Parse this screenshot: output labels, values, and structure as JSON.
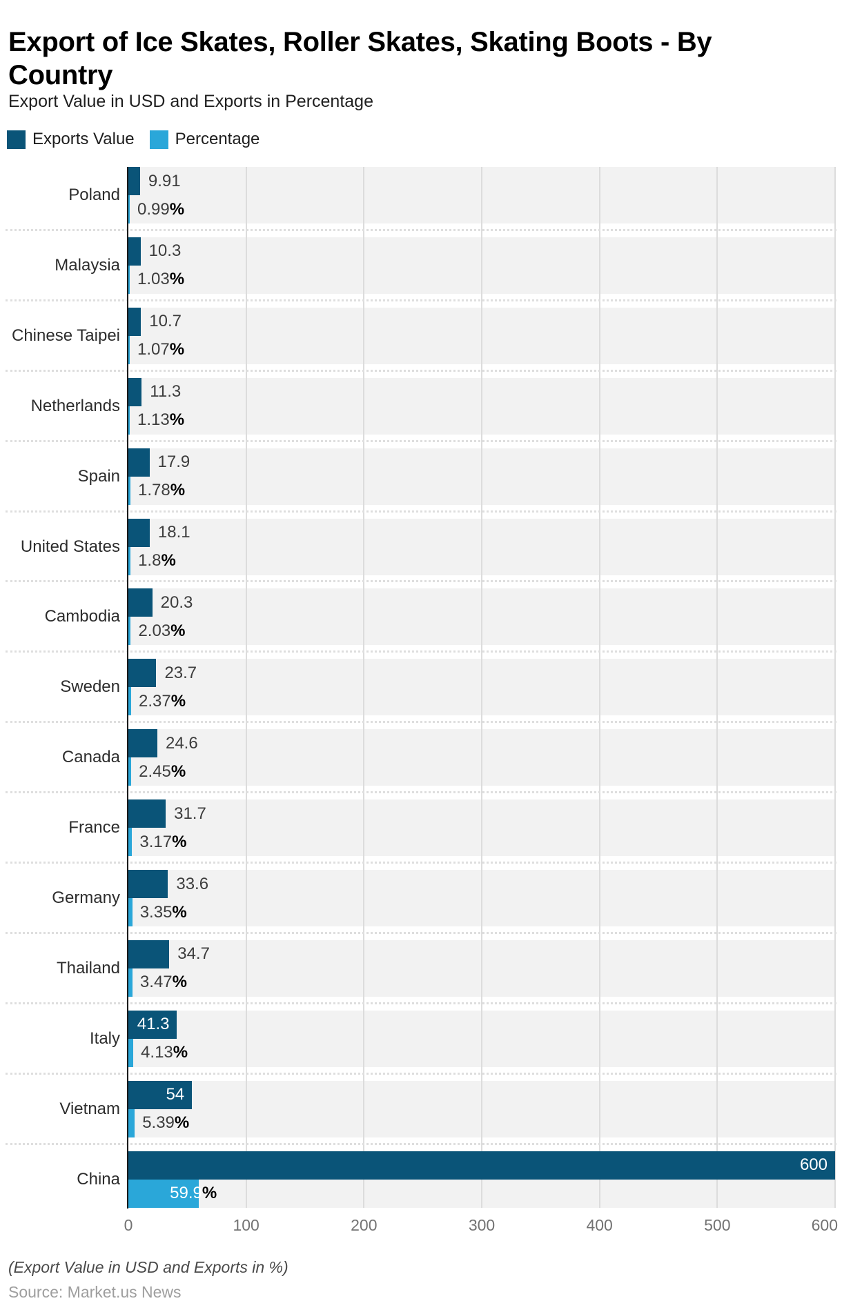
{
  "page": {
    "title": "Export of Ice Skates, Roller Skates, Skating Boots - By Country",
    "subtitle": "Export Value in USD and Exports in Percentage",
    "footnote": "(Export Value in USD and Exports in %)",
    "source": "Source: Market.us News"
  },
  "legend": {
    "items": [
      {
        "label": "Exports Value",
        "color": "#0a5478"
      },
      {
        "label": "Percentage",
        "color": "#2aa7d9"
      }
    ]
  },
  "colors": {
    "exports_value_bar": "#0a5478",
    "percentage_bar": "#2aa7d9",
    "row_band": "#f2f2f2",
    "grid_line": "#dcdcdc",
    "axis_line": "#1a1a1a",
    "value_label": "#3d3d3d",
    "percent_sign": "#000000",
    "tick_label": "#737373"
  },
  "chart_data": {
    "type": "bar",
    "orientation": "horizontal",
    "title": "Export of Ice Skates, Roller Skates, Skating Boots - By Country",
    "subtitle": "Export Value in USD and Exports in Percentage",
    "legend_position": "top",
    "grid": "vertical",
    "xlim": [
      0,
      600
    ],
    "x_ticks": [
      0,
      100,
      200,
      300,
      400,
      500,
      600
    ],
    "categories": [
      "Poland",
      "Malaysia",
      "Chinese Taipei",
      "Netherlands",
      "Spain",
      "United States",
      "Cambodia",
      "Sweden",
      "Canada",
      "France",
      "Germany",
      "Thailand",
      "Italy",
      "Vietnam",
      "China"
    ],
    "series": [
      {
        "name": "Exports Value",
        "color": "#0a5478",
        "values": [
          9.91,
          10.3,
          10.7,
          11.3,
          17.9,
          18.1,
          20.3,
          23.7,
          24.6,
          31.7,
          33.6,
          34.7,
          41.3,
          54,
          600
        ],
        "labels": [
          "9.91",
          "10.3",
          "10.7",
          "11.3",
          "17.9",
          "18.1",
          "20.3",
          "23.7",
          "24.6",
          "31.7",
          "33.6",
          "34.7",
          "41.3",
          "54",
          "600"
        ]
      },
      {
        "name": "Percentage",
        "color": "#2aa7d9",
        "values": [
          0.99,
          1.03,
          1.07,
          1.13,
          1.78,
          1.8,
          2.03,
          2.37,
          2.45,
          3.17,
          3.35,
          3.47,
          4.13,
          5.39,
          59.9
        ],
        "labels": [
          "0.99",
          "1.03",
          "1.07",
          "1.13",
          "1.78",
          "1.8",
          "2.03",
          "2.37",
          "2.45",
          "3.17",
          "3.35",
          "3.47",
          "4.13",
          "5.39",
          "59.9"
        ],
        "label_suffix": "%"
      }
    ]
  }
}
